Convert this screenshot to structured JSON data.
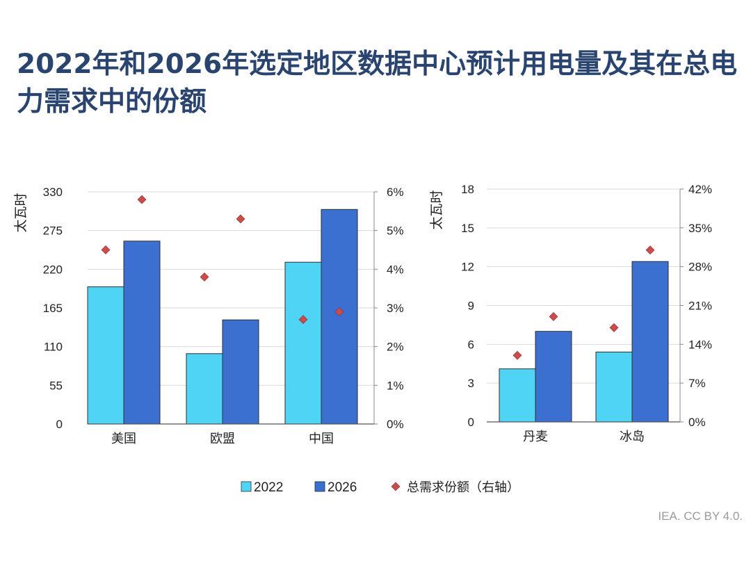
{
  "title": "2022年和2026年选定地区数据中心预计用电量及其在总电力需求中的份额",
  "credit": "IEA. CC BY 4.0.",
  "colors": {
    "s2022": "#4fd4f6",
    "s2026": "#3b6fd0",
    "marker": "#cc4b4b",
    "title": "#2a4470"
  },
  "legend": {
    "s2022": "2022",
    "s2026": "2026",
    "marker": "总需求份额（右轴）"
  },
  "chart_data": [
    {
      "type": "bar",
      "ylabel": "太瓦时",
      "ylim": [
        0,
        330
      ],
      "yticks": [
        "0",
        "55",
        "110",
        "165",
        "220",
        "275",
        "330"
      ],
      "y2lim": [
        0,
        6
      ],
      "y2ticks": [
        "0%",
        "1%",
        "2%",
        "3%",
        "4%",
        "5%",
        "6%"
      ],
      "categories": [
        "美国",
        "欧盟",
        "中国"
      ],
      "series": [
        {
          "name": "2022",
          "values": [
            195,
            100,
            230
          ]
        },
        {
          "name": "2026",
          "values": [
            260,
            148,
            305
          ]
        },
        {
          "name": "总需求份额（右轴）",
          "axis": "right",
          "values2022": [
            4.5,
            3.8,
            2.7
          ],
          "values2026": [
            5.8,
            5.3,
            2.9
          ]
        }
      ]
    },
    {
      "type": "bar",
      "ylabel": "太瓦时",
      "ylim": [
        0,
        18
      ],
      "yticks": [
        "0",
        "3",
        "6",
        "9",
        "12",
        "15",
        "18"
      ],
      "y2lim": [
        0,
        42
      ],
      "y2ticks": [
        "0%",
        "7%",
        "14%",
        "21%",
        "28%",
        "35%",
        "42%"
      ],
      "categories": [
        "丹麦",
        "冰岛"
      ],
      "series": [
        {
          "name": "2022",
          "values": [
            4.1,
            5.4
          ]
        },
        {
          "name": "2026",
          "values": [
            7.0,
            12.4
          ]
        },
        {
          "name": "总需求份额（右轴）",
          "axis": "right",
          "values2022": [
            12,
            17
          ],
          "values2026": [
            19,
            31
          ]
        }
      ]
    }
  ]
}
